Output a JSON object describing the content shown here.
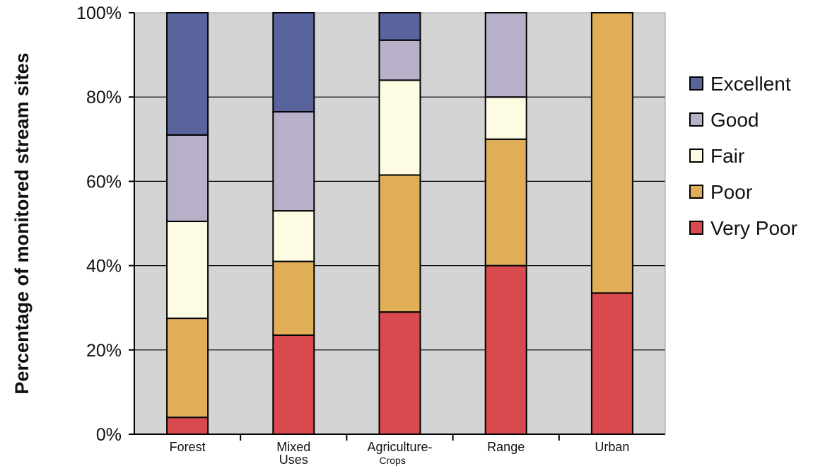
{
  "chart_data": {
    "type": "bar",
    "stacked": true,
    "title": "",
    "ylabel": "Percentage of monitored stream sites",
    "xlabel": "",
    "ylim": [
      0,
      100
    ],
    "y_ticks": [
      "0%",
      "20%",
      "40%",
      "60%",
      "80%",
      "100%"
    ],
    "y_tick_values": [
      0,
      20,
      40,
      60,
      80,
      100
    ],
    "grid": true,
    "legend_position": "right",
    "categories": [
      "Forest",
      "Mixed Uses",
      "Agriculture-Crops",
      "Range",
      "Urban"
    ],
    "category_labels": [
      {
        "main": "Forest",
        "sub": ""
      },
      {
        "main": "Mixed",
        "sub": "Uses"
      },
      {
        "main": "Agriculture-",
        "sub": "Crops"
      },
      {
        "main": "Range",
        "sub": ""
      },
      {
        "main": "Urban",
        "sub": ""
      }
    ],
    "series": [
      {
        "name": "Very Poor",
        "color": "#d94a4f",
        "values": [
          4,
          23.5,
          29,
          40,
          33.5
        ]
      },
      {
        "name": "Poor",
        "color": "#e0ae57",
        "values": [
          23.5,
          17.5,
          32.5,
          30,
          66.5
        ]
      },
      {
        "name": "Fair",
        "color": "#fdfbe2",
        "values": [
          23,
          12,
          22.5,
          10,
          0
        ]
      },
      {
        "name": "Good",
        "color": "#b7b0c8",
        "values": [
          20.5,
          23.5,
          9.5,
          20,
          0
        ]
      },
      {
        "name": "Excellent",
        "color": "#58649b",
        "values": [
          29,
          23.5,
          6.5,
          0,
          0
        ]
      }
    ],
    "legend_order": [
      "Excellent",
      "Good",
      "Fair",
      "Poor",
      "Very Poor"
    ],
    "plot_background": "#d4d4d4"
  }
}
